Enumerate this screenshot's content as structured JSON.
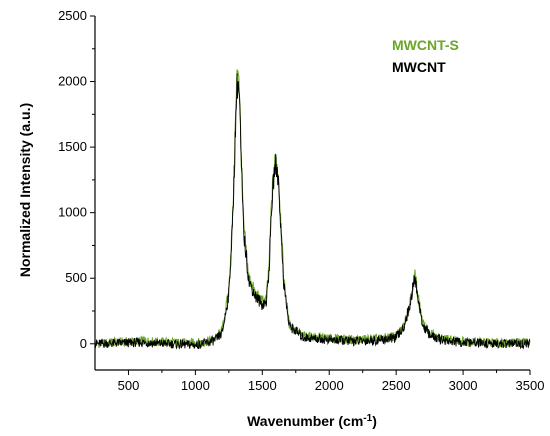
{
  "chart_data": {
    "type": "line",
    "xlabel": "Wavenumber (cm",
    "xlabel_superscript": "-1",
    "xlabel_suffix": ")",
    "ylabel": "Normalized Intensity (a.u.)",
    "xlim": [
      250,
      3500
    ],
    "ylim": [
      -200,
      2500
    ],
    "xticks": [
      500,
      1000,
      1500,
      2000,
      2500,
      3000,
      3500
    ],
    "yticks": [
      0,
      500,
      1000,
      1500,
      2000,
      2500
    ],
    "grid": false,
    "legend_position": "top-right",
    "series": [
      {
        "name": "MWCNT-S",
        "color": "#6aa527",
        "x": [
          250,
          400,
          600,
          800,
          1000,
          1100,
          1150,
          1200,
          1250,
          1280,
          1300,
          1310,
          1320,
          1330,
          1340,
          1360,
          1400,
          1450,
          1500,
          1530,
          1550,
          1570,
          1590,
          1600,
          1620,
          1640,
          1660,
          1700,
          1800,
          2000,
          2200,
          2400,
          2500,
          2550,
          2600,
          2620,
          2640,
          2660,
          2680,
          2700,
          2750,
          2800,
          2900,
          3000,
          3200,
          3500
        ],
        "y": [
          0,
          10,
          20,
          10,
          5,
          20,
          40,
          100,
          400,
          1000,
          1700,
          2000,
          2150,
          1900,
          1500,
          900,
          500,
          380,
          320,
          340,
          600,
          1100,
          1360,
          1400,
          1300,
          900,
          500,
          150,
          60,
          40,
          30,
          40,
          60,
          120,
          300,
          420,
          530,
          400,
          260,
          150,
          80,
          50,
          30,
          20,
          10,
          10
        ]
      },
      {
        "name": "MWCNT",
        "color": "#000000",
        "x": [
          250,
          400,
          600,
          800,
          1000,
          1100,
          1150,
          1200,
          1250,
          1280,
          1300,
          1310,
          1320,
          1330,
          1340,
          1360,
          1400,
          1450,
          1500,
          1530,
          1550,
          1570,
          1590,
          1600,
          1620,
          1640,
          1660,
          1700,
          1800,
          2000,
          2200,
          2400,
          2500,
          2550,
          2600,
          2620,
          2640,
          2660,
          2680,
          2700,
          2750,
          2800,
          2900,
          3000,
          3200,
          3500
        ],
        "y": [
          0,
          5,
          10,
          0,
          -10,
          10,
          30,
          80,
          380,
          950,
          1650,
          1950,
          2000,
          1850,
          1450,
          850,
          480,
          360,
          300,
          320,
          560,
          1050,
          1320,
          1370,
          1260,
          860,
          470,
          140,
          50,
          30,
          20,
          30,
          50,
          110,
          280,
          400,
          500,
          380,
          240,
          140,
          70,
          40,
          20,
          10,
          0,
          0
        ]
      }
    ]
  }
}
